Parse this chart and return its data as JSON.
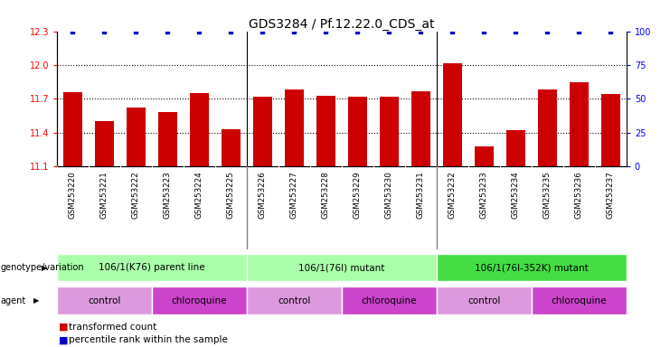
{
  "title": "GDS3284 / Pf.12.22.0_CDS_at",
  "samples": [
    "GSM253220",
    "GSM253221",
    "GSM253222",
    "GSM253223",
    "GSM253224",
    "GSM253225",
    "GSM253226",
    "GSM253227",
    "GSM253228",
    "GSM253229",
    "GSM253230",
    "GSM253231",
    "GSM253232",
    "GSM253233",
    "GSM253234",
    "GSM253235",
    "GSM253236",
    "GSM253237"
  ],
  "bar_values": [
    11.76,
    11.5,
    11.62,
    11.58,
    11.75,
    11.43,
    11.72,
    11.78,
    11.73,
    11.72,
    11.72,
    11.77,
    12.02,
    11.28,
    11.42,
    11.78,
    11.85,
    11.74
  ],
  "percentile_values": [
    100,
    100,
    100,
    100,
    100,
    100,
    100,
    100,
    100,
    100,
    100,
    100,
    100,
    100,
    100,
    100,
    100,
    100
  ],
  "ylim_left": [
    11.1,
    12.3
  ],
  "ylim_right": [
    0,
    100
  ],
  "yticks_left": [
    11.1,
    11.4,
    11.7,
    12.0,
    12.3
  ],
  "yticks_right": [
    0,
    25,
    50,
    75,
    100
  ],
  "bar_color": "#cc0000",
  "percentile_color": "#0000cc",
  "title_fontsize": 10,
  "genotype_groups": [
    {
      "label": "106/1(K76) parent line",
      "start": 0,
      "end": 5,
      "color": "#aaffaa"
    },
    {
      "label": "106/1(76I) mutant",
      "start": 6,
      "end": 11,
      "color": "#aaffaa"
    },
    {
      "label": "106/1(76I-352K) mutant",
      "start": 12,
      "end": 17,
      "color": "#44dd44"
    }
  ],
  "agent_groups": [
    {
      "label": "control",
      "start": 0,
      "end": 2,
      "color": "#dd99dd"
    },
    {
      "label": "chloroquine",
      "start": 3,
      "end": 5,
      "color": "#cc44cc"
    },
    {
      "label": "control",
      "start": 6,
      "end": 8,
      "color": "#dd99dd"
    },
    {
      "label": "chloroquine",
      "start": 9,
      "end": 11,
      "color": "#cc44cc"
    },
    {
      "label": "control",
      "start": 12,
      "end": 14,
      "color": "#dd99dd"
    },
    {
      "label": "chloroquine",
      "start": 15,
      "end": 17,
      "color": "#cc44cc"
    }
  ],
  "legend_items": [
    {
      "label": "transformed count",
      "color": "#cc0000"
    },
    {
      "label": "percentile rank within the sample",
      "color": "#0000cc"
    }
  ],
  "row_label_genotype": "genotype/variation",
  "row_label_agent": "agent",
  "background_color": "#ffffff",
  "group_separators": [
    5.5,
    11.5
  ]
}
